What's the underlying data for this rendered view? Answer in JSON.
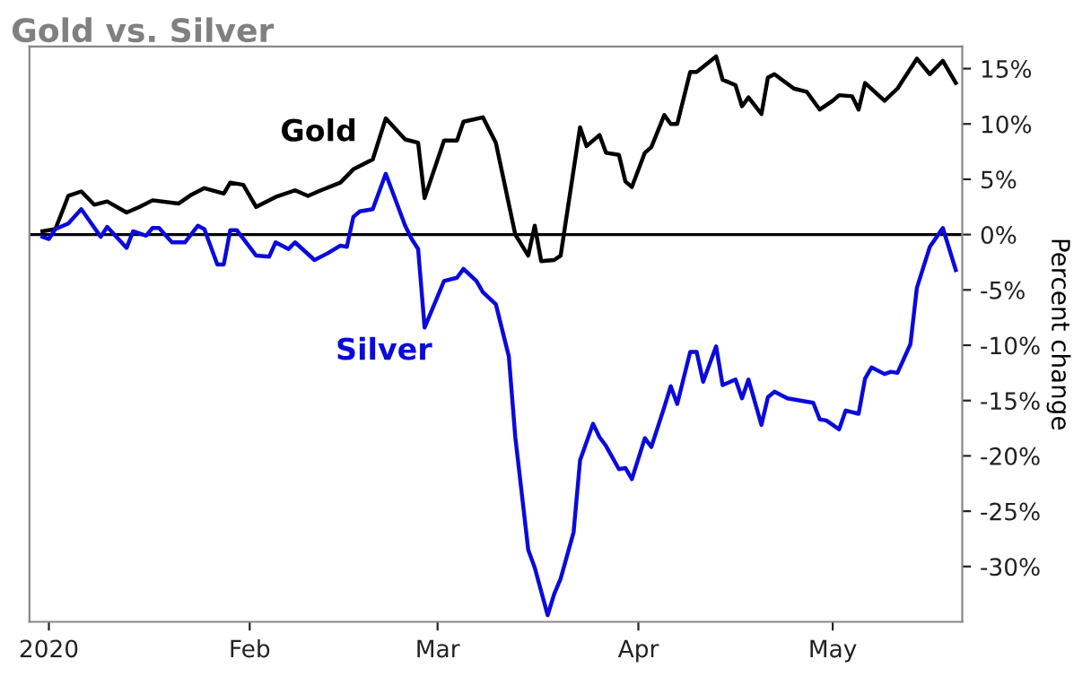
{
  "chart_data": {
    "type": "line",
    "title": "Gold vs. Silver",
    "ylabel": "Percent change",
    "xlim": [
      "2019-12-29",
      "2020-05-21"
    ],
    "xticks": [
      {
        "value": "2020-01-01",
        "label": "2020"
      },
      {
        "value": "2020-02-01",
        "label": "Feb"
      },
      {
        "value": "2020-03-01",
        "label": "Mar"
      },
      {
        "value": "2020-04-01",
        "label": "Apr"
      },
      {
        "value": "2020-05-01",
        "label": "May"
      }
    ],
    "ylim": [
      -35,
      17
    ],
    "yticks": [
      {
        "value": 15,
        "label": "15%"
      },
      {
        "value": 10,
        "label": "10%"
      },
      {
        "value": 5,
        "label": "5%"
      },
      {
        "value": 0,
        "label": "0%"
      },
      {
        "value": -5,
        "label": "-5%"
      },
      {
        "value": -10,
        "label": "-10%"
      },
      {
        "value": -15,
        "label": "-15%"
      },
      {
        "value": -20,
        "label": "-20%"
      },
      {
        "value": -25,
        "label": "-25%"
      },
      {
        "value": -30,
        "label": "-30%"
      }
    ],
    "grid": false,
    "legend": false,
    "marker": "none",
    "line_style": "solid",
    "ref_lines": [
      {
        "axis": "y",
        "value": 0,
        "color": "#000000"
      }
    ],
    "series": [
      {
        "name": "Gold",
        "color": "#000000",
        "x": [
          "2019-12-31",
          "2020-01-02",
          "2020-01-04",
          "2020-01-06",
          "2020-01-08",
          "2020-01-10",
          "2020-01-13",
          "2020-01-15",
          "2020-01-17",
          "2020-01-21",
          "2020-01-23",
          "2020-01-25",
          "2020-01-28",
          "2020-01-29",
          "2020-01-31",
          "2020-02-02",
          "2020-02-05",
          "2020-02-08",
          "2020-02-10",
          "2020-02-12",
          "2020-02-15",
          "2020-02-17",
          "2020-02-20",
          "2020-02-22",
          "2020-02-25",
          "2020-02-27",
          "2020-02-28",
          "2020-03-02",
          "2020-03-04",
          "2020-03-05",
          "2020-03-08",
          "2020-03-10",
          "2020-03-13",
          "2020-03-15",
          "2020-03-16",
          "2020-03-17",
          "2020-03-19",
          "2020-03-20",
          "2020-03-23",
          "2020-03-24",
          "2020-03-26",
          "2020-03-27",
          "2020-03-29",
          "2020-03-30",
          "2020-03-31",
          "2020-04-02",
          "2020-04-03",
          "2020-04-05",
          "2020-04-06",
          "2020-04-07",
          "2020-04-09",
          "2020-04-10",
          "2020-04-13",
          "2020-04-14",
          "2020-04-16",
          "2020-04-17",
          "2020-04-18",
          "2020-04-20",
          "2020-04-21",
          "2020-04-22",
          "2020-04-25",
          "2020-04-27",
          "2020-04-29",
          "2020-05-01",
          "2020-05-02",
          "2020-05-04",
          "2020-05-05",
          "2020-05-06",
          "2020-05-09",
          "2020-05-11",
          "2020-05-14",
          "2020-05-16",
          "2020-05-18",
          "2020-05-20"
        ],
        "values": [
          0.3,
          0.5,
          3.5,
          3.9,
          2.7,
          3.0,
          2.0,
          2.5,
          3.1,
          2.8,
          3.6,
          4.2,
          3.7,
          4.7,
          4.5,
          2.5,
          3.4,
          4.0,
          3.5,
          4.0,
          4.7,
          5.9,
          6.8,
          10.5,
          8.6,
          8.3,
          3.3,
          8.5,
          8.5,
          10.2,
          10.6,
          8.3,
          0,
          -1.9,
          0.8,
          -2.4,
          -2.3,
          -1.9,
          9.7,
          8.0,
          9.0,
          7.4,
          7.2,
          4.8,
          4.3,
          7.4,
          7.9,
          10.8,
          10.0,
          10.0,
          14.7,
          14.7,
          16.1,
          14.0,
          13.5,
          11.6,
          12.4,
          10.9,
          14.2,
          14.5,
          13.2,
          12.9,
          11.3,
          12.1,
          12.6,
          12.5,
          11.3,
          13.7,
          12.1,
          13.2,
          15.9,
          14.5,
          15.7,
          13.7
        ]
      },
      {
        "name": "Silver",
        "color": "#0a0adc",
        "x": [
          "2019-12-31",
          "2020-01-01",
          "2020-01-02",
          "2020-01-04",
          "2020-01-06",
          "2020-01-09",
          "2020-01-10",
          "2020-01-13",
          "2020-01-14",
          "2020-01-16",
          "2020-01-17",
          "2020-01-18",
          "2020-01-20",
          "2020-01-22",
          "2020-01-24",
          "2020-01-25",
          "2020-01-27",
          "2020-01-28",
          "2020-01-29",
          "2020-01-30",
          "2020-02-02",
          "2020-02-04",
          "2020-02-05",
          "2020-02-07",
          "2020-02-08",
          "2020-02-11",
          "2020-02-13",
          "2020-02-15",
          "2020-02-16",
          "2020-02-17",
          "2020-02-18",
          "2020-02-20",
          "2020-02-22",
          "2020-02-25",
          "2020-02-26",
          "2020-02-27",
          "2020-02-28",
          "2020-03-02",
          "2020-03-04",
          "2020-03-05",
          "2020-03-07",
          "2020-03-08",
          "2020-03-10",
          "2020-03-12",
          "2020-03-13",
          "2020-03-15",
          "2020-03-16",
          "2020-03-18",
          "2020-03-19",
          "2020-03-20",
          "2020-03-22",
          "2020-03-23",
          "2020-03-25",
          "2020-03-26",
          "2020-03-27",
          "2020-03-29",
          "2020-03-30",
          "2020-03-31",
          "2020-04-02",
          "2020-04-03",
          "2020-04-05",
          "2020-04-06",
          "2020-04-07",
          "2020-04-09",
          "2020-04-10",
          "2020-04-11",
          "2020-04-13",
          "2020-04-14",
          "2020-04-16",
          "2020-04-17",
          "2020-04-18",
          "2020-04-20",
          "2020-04-21",
          "2020-04-22",
          "2020-04-24",
          "2020-04-28",
          "2020-04-29",
          "2020-04-30",
          "2020-05-02",
          "2020-05-03",
          "2020-05-05",
          "2020-05-06",
          "2020-05-07",
          "2020-05-09",
          "2020-05-10",
          "2020-05-11",
          "2020-05-13",
          "2020-05-14",
          "2020-05-16",
          "2020-05-18",
          "2020-05-20"
        ],
        "values": [
          -0.2,
          -0.4,
          0.5,
          1.0,
          2.3,
          -0.2,
          0.7,
          -1.2,
          0.3,
          -0.1,
          0.6,
          0.6,
          -0.7,
          -0.7,
          0.8,
          0.5,
          -2.7,
          -2.7,
          0.4,
          0.4,
          -1.9,
          -2.0,
          -0.7,
          -1.3,
          -0.7,
          -2.3,
          -1.7,
          -1.0,
          -1.1,
          1.6,
          2.1,
          2.3,
          5.5,
          0.8,
          -0.4,
          -1.3,
          -8.4,
          -4.2,
          -3.9,
          -3.1,
          -4.2,
          -5.2,
          -6.3,
          -11.0,
          -18.3,
          -28.5,
          -30.1,
          -34.4,
          -32.5,
          -31.1,
          -26.9,
          -20.4,
          -17.1,
          -18.3,
          -19.1,
          -21.2,
          -21.1,
          -22.1,
          -18.4,
          -19.2,
          -15.6,
          -13.7,
          -15.3,
          -10.6,
          -10.6,
          -13.3,
          -10.1,
          -13.6,
          -13.1,
          -14.8,
          -13.1,
          -17.2,
          -14.7,
          -14.2,
          -14.8,
          -15.2,
          -16.7,
          -16.8,
          -17.6,
          -15.9,
          -16.2,
          -13.0,
          -12.0,
          -12.6,
          -12.4,
          -12.5,
          -9.9,
          -4.8,
          -1.1,
          0.6,
          -3.2
        ]
      }
    ]
  }
}
